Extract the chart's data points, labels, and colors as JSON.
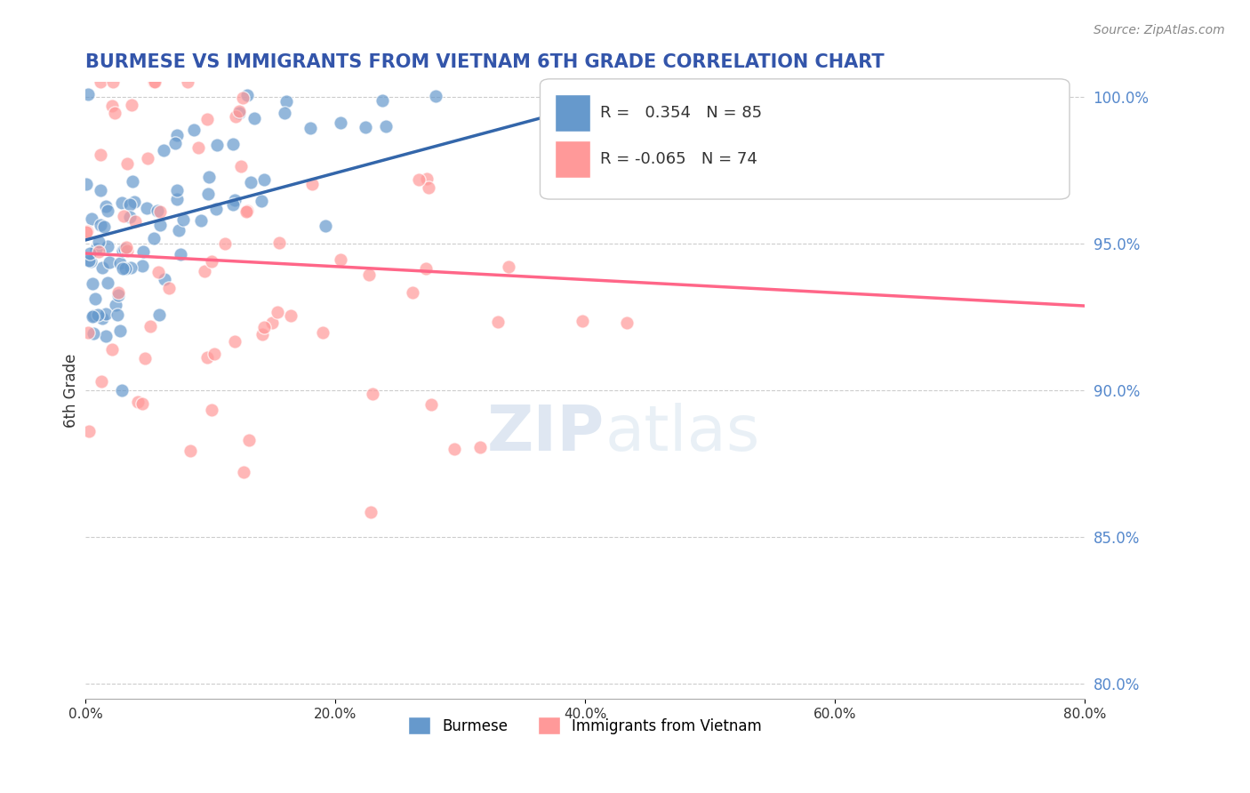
{
  "title": "BURMESE VS IMMIGRANTS FROM VIETNAM 6TH GRADE CORRELATION CHART",
  "source_text": "Source: ZipAtlas.com",
  "ylabel": "6th Grade",
  "xlabel": "",
  "xlim": [
    0.0,
    0.8
  ],
  "ylim": [
    0.795,
    1.005
  ],
  "right_yticks": [
    1.0,
    0.95,
    0.9,
    0.85,
    0.8
  ],
  "right_yticklabels": [
    "100.0%",
    "95.0%",
    "90.0%",
    "85.0%",
    "80.0%"
  ],
  "xticklabels": [
    "0.0%",
    "20.0%",
    "40.0%",
    "60.0%",
    "80.0%"
  ],
  "xticks": [
    0.0,
    0.2,
    0.4,
    0.6,
    0.8
  ],
  "burmese_R": 0.354,
  "burmese_N": 85,
  "vietnam_R": -0.065,
  "vietnam_N": 74,
  "blue_color": "#6699CC",
  "pink_color": "#FF9999",
  "blue_line_color": "#3366AA",
  "pink_line_color": "#FF6688",
  "title_color": "#3355AA",
  "watermark_text": "ZIPatlas",
  "watermark_zip_color": "#AABBDD",
  "watermark_atlas_color": "#CCDDEE",
  "background_color": "#FFFFFF",
  "grid_color": "#CCCCCC",
  "right_axis_color": "#5588CC"
}
